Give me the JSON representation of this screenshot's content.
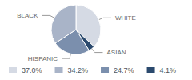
{
  "chart_data": {
    "type": "pie",
    "categories": [
      "WHITE",
      "ASIAN",
      "HISPANIC",
      "BLACK"
    ],
    "values": [
      37.0,
      4.1,
      24.7,
      34.2
    ],
    "value_labels": [
      "37.0%",
      "4.1%",
      "24.7%",
      "34.2%"
    ],
    "colors": [
      "#d5dae4",
      "#2b4a6e",
      "#7b8fad",
      "#a9b4c8"
    ],
    "legend": "bottom"
  }
}
